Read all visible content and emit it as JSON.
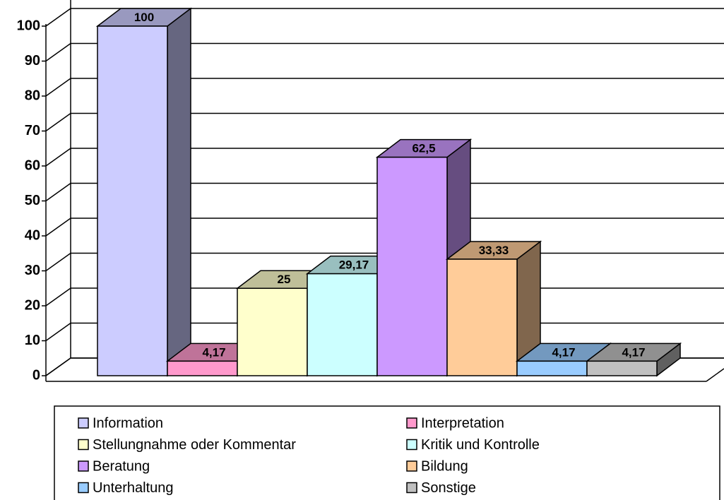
{
  "chart_data": {
    "type": "bar3d",
    "categories": [
      "Information",
      "Interpretation",
      "Stellungnahme oder Kommentar",
      "Kritik und Kontrolle",
      "Beratung",
      "Bildung",
      "Unterhaltung",
      "Sonstige"
    ],
    "values": [
      100,
      4.17,
      25,
      29.17,
      62.5,
      33.33,
      4.17,
      4.17
    ],
    "value_labels": [
      "100",
      "4,17",
      "25",
      "29,17",
      "62,5",
      "33,33",
      "4,17",
      "4,17"
    ],
    "colors": [
      "#ccccff",
      "#ff99cc",
      "#ffffcc",
      "#ccffff",
      "#cc99ff",
      "#ffcc99",
      "#99ccff",
      "#c0c0c0"
    ],
    "ylim": [
      0,
      100
    ],
    "yticks": [
      0,
      10,
      20,
      30,
      40,
      50,
      60,
      70,
      80,
      90,
      100
    ],
    "grid": true,
    "legend": "bottom"
  }
}
